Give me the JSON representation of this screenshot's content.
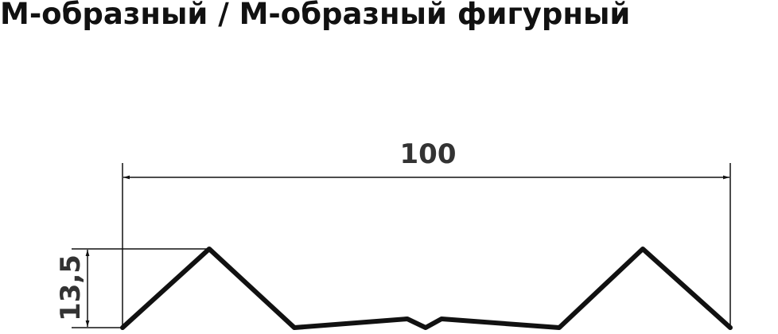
{
  "title": "М-образный / М-образный фигурный",
  "dimensions": {
    "width": "100",
    "height": "13,5"
  },
  "colors": {
    "profile": "#111111"
  }
}
